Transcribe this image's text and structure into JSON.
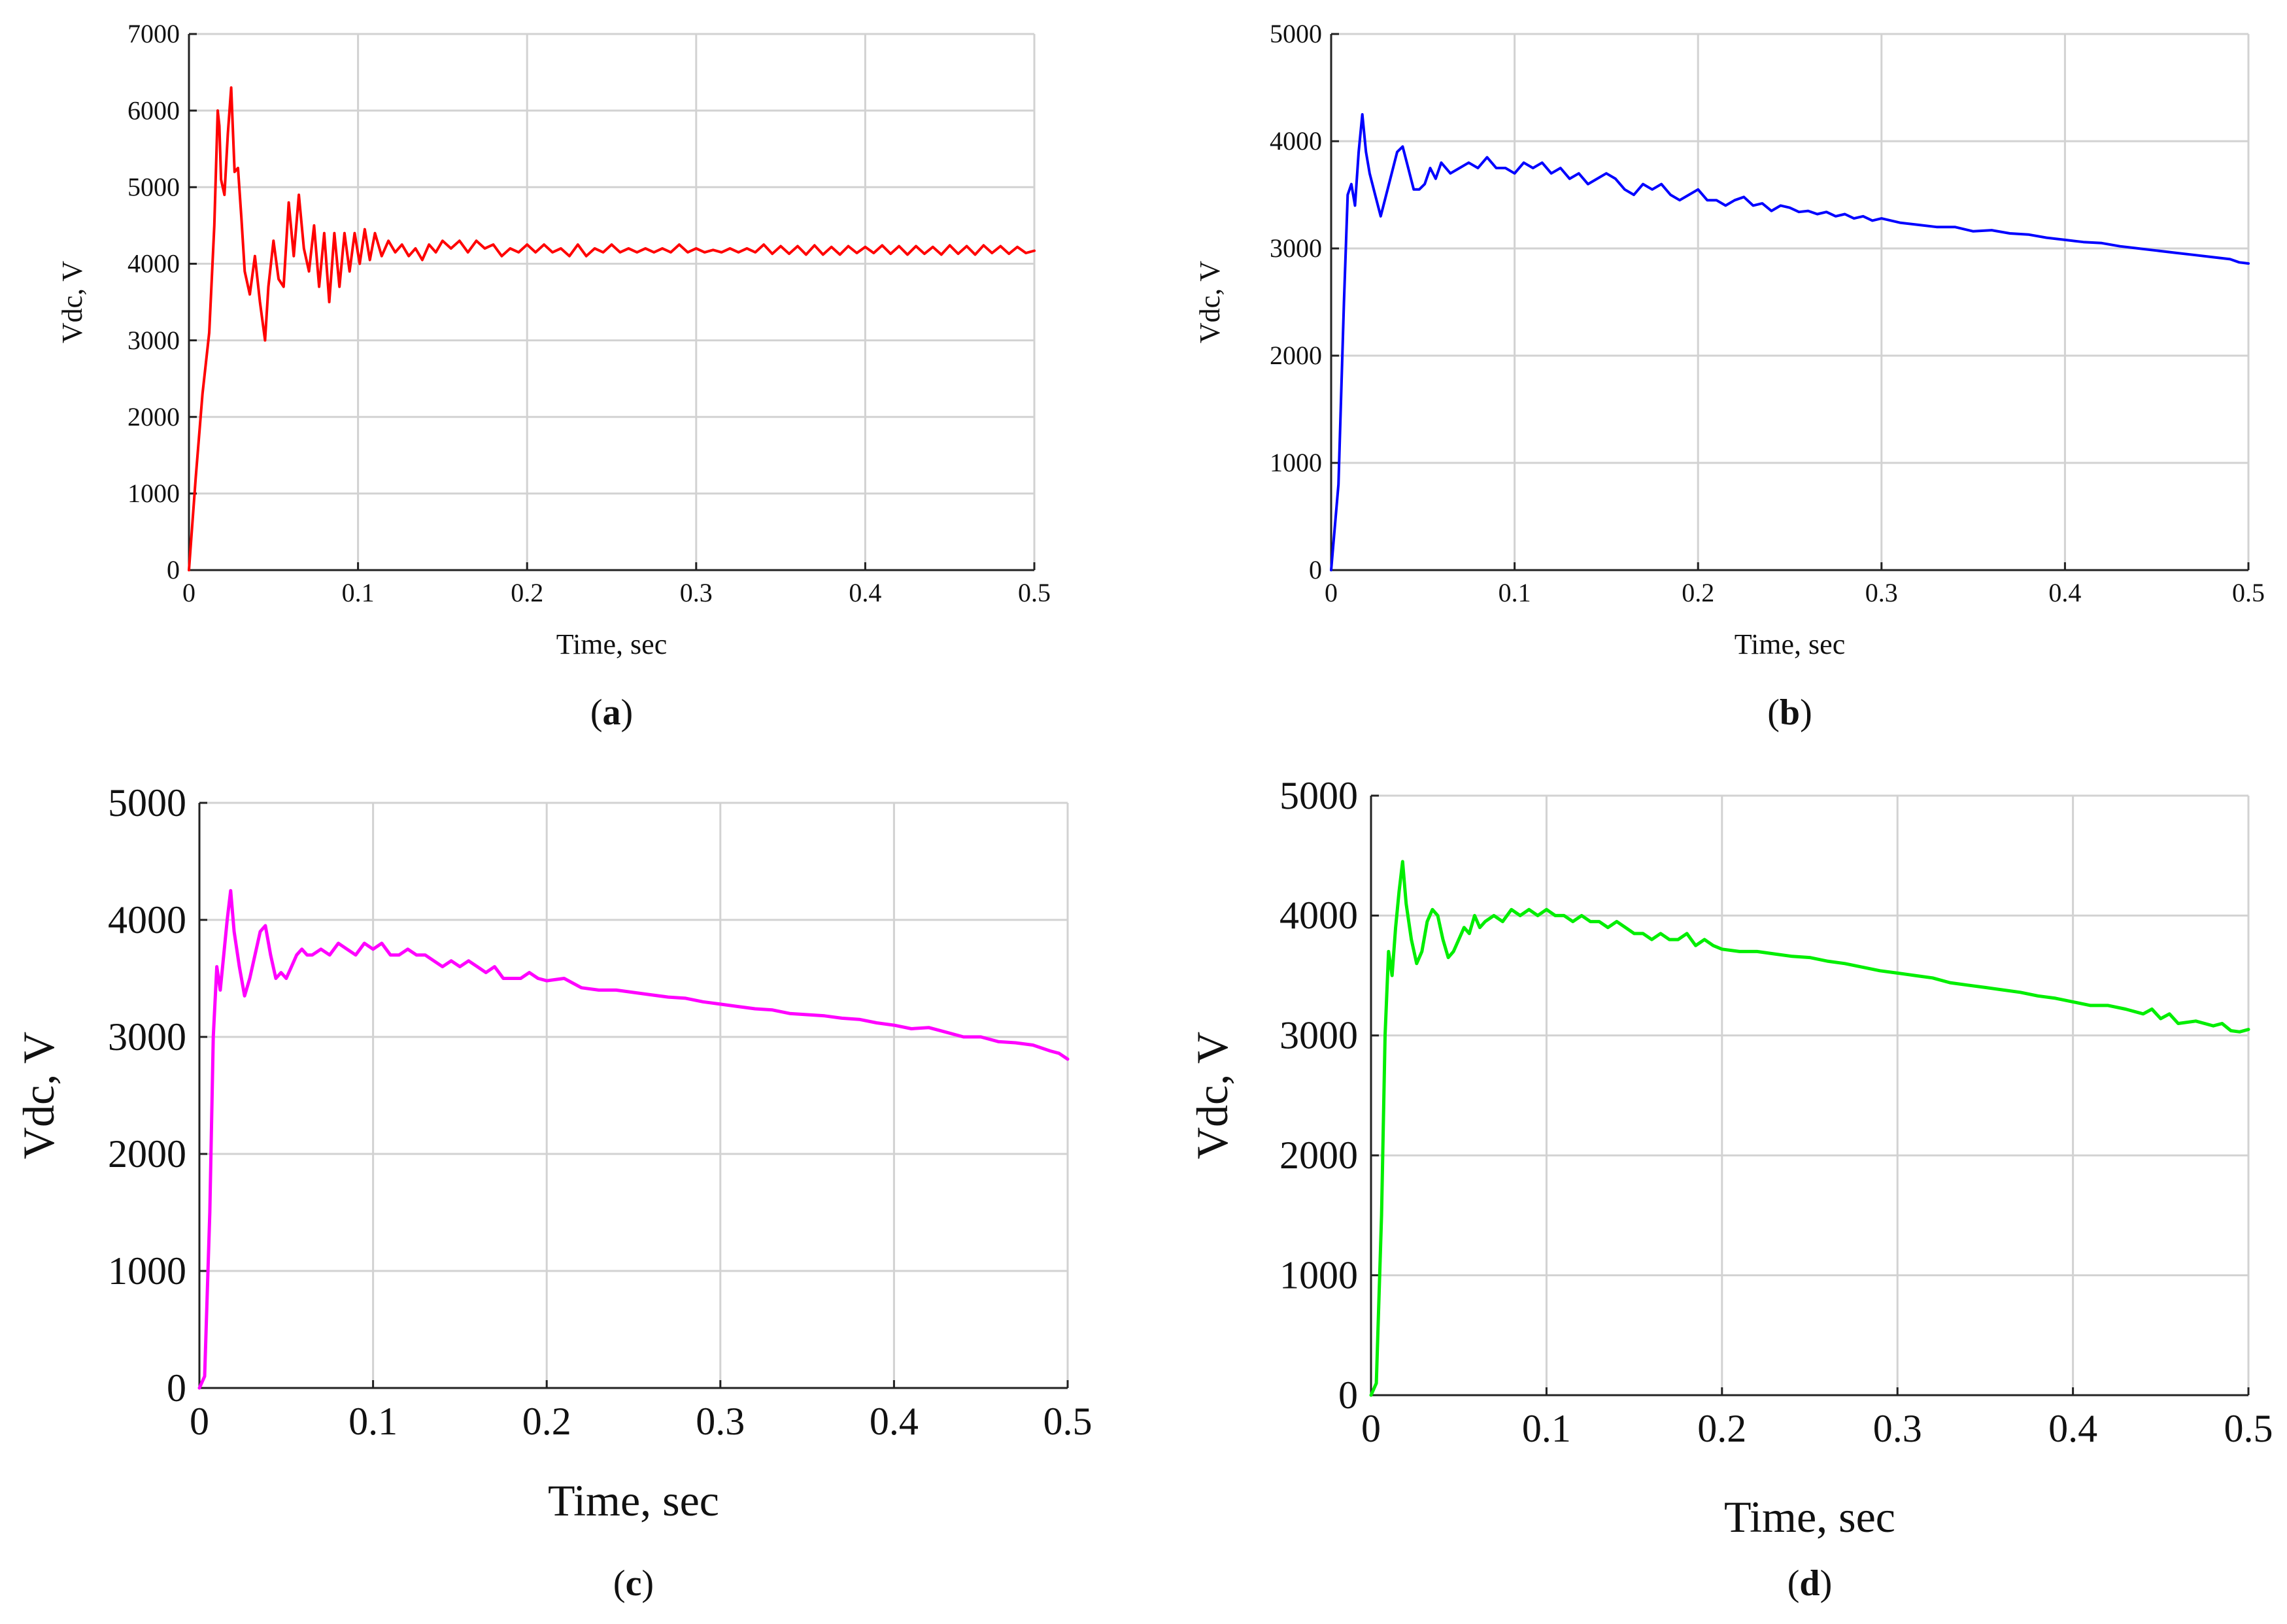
{
  "chart_data": [
    {
      "id": "a",
      "type": "line",
      "panel_label": "a",
      "xlabel": "Time, sec",
      "ylabel": "Vdc, V",
      "xlim": [
        0,
        0.5
      ],
      "ylim": [
        0,
        7000
      ],
      "xticks": [
        0,
        0.1,
        0.2,
        0.3,
        0.4,
        0.5
      ],
      "xtick_labels": [
        "0",
        "0.1",
        "0.2",
        "0.3",
        "0.4",
        "0.5"
      ],
      "yticks": [
        0,
        1000,
        2000,
        3000,
        4000,
        5000,
        6000,
        7000
      ],
      "ytick_labels": [
        "0",
        "1000",
        "2000",
        "3000",
        "4000",
        "5000",
        "6000",
        "7000"
      ],
      "grid": true,
      "series": [
        {
          "name": "Vdc",
          "color": "#ff0000",
          "x": [
            0,
            0.004,
            0.008,
            0.012,
            0.015,
            0.017,
            0.018,
            0.019,
            0.021,
            0.023,
            0.025,
            0.027,
            0.029,
            0.031,
            0.033,
            0.036,
            0.039,
            0.042,
            0.045,
            0.047,
            0.05,
            0.053,
            0.056,
            0.059,
            0.062,
            0.065,
            0.068,
            0.071,
            0.074,
            0.077,
            0.08,
            0.083,
            0.086,
            0.089,
            0.092,
            0.095,
            0.098,
            0.101,
            0.104,
            0.107,
            0.11,
            0.114,
            0.118,
            0.122,
            0.126,
            0.13,
            0.134,
            0.138,
            0.142,
            0.146,
            0.15,
            0.155,
            0.16,
            0.165,
            0.17,
            0.175,
            0.18,
            0.185,
            0.19,
            0.195,
            0.2,
            0.205,
            0.21,
            0.215,
            0.22,
            0.225,
            0.23,
            0.235,
            0.24,
            0.245,
            0.25,
            0.255,
            0.26,
            0.265,
            0.27,
            0.275,
            0.28,
            0.285,
            0.29,
            0.295,
            0.3,
            0.305,
            0.31,
            0.315,
            0.32,
            0.325,
            0.33,
            0.335,
            0.34,
            0.345,
            0.35,
            0.355,
            0.36,
            0.365,
            0.37,
            0.375,
            0.38,
            0.385,
            0.39,
            0.395,
            0.4,
            0.405,
            0.41,
            0.415,
            0.42,
            0.425,
            0.43,
            0.435,
            0.44,
            0.445,
            0.45,
            0.455,
            0.46,
            0.465,
            0.47,
            0.475,
            0.48,
            0.485,
            0.49,
            0.495,
            0.5
          ],
          "y": [
            0,
            1200,
            2300,
            3100,
            4500,
            6000,
            5800,
            5100,
            4900,
            5700,
            6300,
            5200,
            5250,
            4600,
            3900,
            3600,
            4100,
            3500,
            3000,
            3700,
            4300,
            3800,
            3700,
            4800,
            4100,
            4900,
            4200,
            3900,
            4500,
            3700,
            4400,
            3500,
            4400,
            3700,
            4400,
            3900,
            4400,
            4000,
            4450,
            4050,
            4400,
            4100,
            4300,
            4150,
            4250,
            4100,
            4200,
            4050,
            4250,
            4150,
            4300,
            4200,
            4300,
            4150,
            4300,
            4200,
            4250,
            4100,
            4200,
            4150,
            4250,
            4150,
            4250,
            4150,
            4200,
            4100,
            4250,
            4100,
            4200,
            4150,
            4250,
            4150,
            4200,
            4150,
            4200,
            4150,
            4200,
            4150,
            4250,
            4150,
            4200,
            4150,
            4180,
            4150,
            4200,
            4150,
            4200,
            4150,
            4250,
            4130,
            4230,
            4130,
            4230,
            4120,
            4240,
            4120,
            4220,
            4120,
            4230,
            4140,
            4220,
            4140,
            4240,
            4130,
            4230,
            4120,
            4230,
            4130,
            4220,
            4120,
            4240,
            4130,
            4230,
            4120,
            4240,
            4140,
            4230,
            4130,
            4220,
            4140,
            4170
          ]
        }
      ]
    },
    {
      "id": "b",
      "type": "line",
      "panel_label": "b",
      "xlabel": "Time, sec",
      "ylabel": "Vdc, V",
      "xlim": [
        0,
        0.5
      ],
      "ylim": [
        0,
        5000
      ],
      "xticks": [
        0,
        0.1,
        0.2,
        0.3,
        0.4,
        0.5
      ],
      "xtick_labels": [
        "0",
        "0.1",
        "0.2",
        "0.3",
        "0.4",
        "0.5"
      ],
      "yticks": [
        0,
        1000,
        2000,
        3000,
        4000,
        5000
      ],
      "ytick_labels": [
        "0",
        "1000",
        "2000",
        "3000",
        "4000",
        "5000"
      ],
      "grid": true,
      "series": [
        {
          "name": "Vdc",
          "color": "#0000ff",
          "x": [
            0,
            0.004,
            0.007,
            0.009,
            0.011,
            0.013,
            0.015,
            0.017,
            0.019,
            0.021,
            0.024,
            0.027,
            0.03,
            0.033,
            0.036,
            0.039,
            0.042,
            0.045,
            0.048,
            0.051,
            0.054,
            0.057,
            0.06,
            0.065,
            0.07,
            0.075,
            0.08,
            0.085,
            0.09,
            0.095,
            0.1,
            0.105,
            0.11,
            0.115,
            0.12,
            0.125,
            0.13,
            0.135,
            0.14,
            0.145,
            0.15,
            0.155,
            0.16,
            0.165,
            0.17,
            0.175,
            0.18,
            0.185,
            0.19,
            0.195,
            0.2,
            0.205,
            0.21,
            0.215,
            0.22,
            0.225,
            0.23,
            0.235,
            0.24,
            0.245,
            0.25,
            0.255,
            0.26,
            0.265,
            0.27,
            0.275,
            0.28,
            0.285,
            0.29,
            0.295,
            0.3,
            0.31,
            0.32,
            0.33,
            0.34,
            0.35,
            0.36,
            0.37,
            0.38,
            0.39,
            0.4,
            0.41,
            0.42,
            0.43,
            0.44,
            0.45,
            0.46,
            0.47,
            0.48,
            0.49,
            0.495,
            0.5
          ],
          "y": [
            0,
            800,
            2500,
            3500,
            3600,
            3400,
            3900,
            4250,
            3900,
            3700,
            3500,
            3300,
            3500,
            3700,
            3900,
            3950,
            3750,
            3550,
            3550,
            3600,
            3750,
            3650,
            3800,
            3700,
            3750,
            3800,
            3750,
            3850,
            3750,
            3750,
            3700,
            3800,
            3750,
            3800,
            3700,
            3750,
            3650,
            3700,
            3600,
            3650,
            3700,
            3650,
            3550,
            3500,
            3600,
            3550,
            3600,
            3500,
            3450,
            3500,
            3550,
            3450,
            3450,
            3400,
            3450,
            3480,
            3400,
            3420,
            3350,
            3400,
            3380,
            3340,
            3350,
            3320,
            3340,
            3300,
            3320,
            3280,
            3300,
            3260,
            3280,
            3240,
            3220,
            3200,
            3200,
            3160,
            3170,
            3140,
            3130,
            3100,
            3080,
            3060,
            3050,
            3020,
            3000,
            2980,
            2960,
            2940,
            2920,
            2900,
            2870,
            2860
          ]
        }
      ]
    },
    {
      "id": "c",
      "type": "line",
      "panel_label": "c",
      "xlabel": "Time, sec",
      "ylabel": "Vdc, V",
      "xlim": [
        0,
        0.5
      ],
      "ylim": [
        0,
        5000
      ],
      "xticks": [
        0,
        0.1,
        0.2,
        0.3,
        0.4,
        0.5
      ],
      "xtick_labels": [
        "0",
        "0.1",
        "0.2",
        "0.3",
        "0.4",
        "0.5"
      ],
      "yticks": [
        0,
        1000,
        2000,
        3000,
        4000,
        5000
      ],
      "ytick_labels": [
        "0",
        "1000",
        "2000",
        "3000",
        "4000",
        "5000"
      ],
      "grid": true,
      "series": [
        {
          "name": "Vdc",
          "color": "#ff00ff",
          "x": [
            0,
            0.003,
            0.006,
            0.008,
            0.01,
            0.012,
            0.014,
            0.016,
            0.018,
            0.02,
            0.023,
            0.026,
            0.029,
            0.032,
            0.035,
            0.038,
            0.041,
            0.044,
            0.047,
            0.05,
            0.053,
            0.056,
            0.059,
            0.062,
            0.065,
            0.07,
            0.075,
            0.08,
            0.085,
            0.09,
            0.095,
            0.1,
            0.105,
            0.11,
            0.115,
            0.12,
            0.125,
            0.13,
            0.135,
            0.14,
            0.145,
            0.15,
            0.155,
            0.16,
            0.165,
            0.17,
            0.175,
            0.18,
            0.185,
            0.19,
            0.195,
            0.2,
            0.21,
            0.22,
            0.23,
            0.24,
            0.25,
            0.26,
            0.27,
            0.28,
            0.29,
            0.3,
            0.31,
            0.32,
            0.33,
            0.34,
            0.35,
            0.36,
            0.37,
            0.38,
            0.39,
            0.4,
            0.41,
            0.42,
            0.43,
            0.44,
            0.45,
            0.46,
            0.47,
            0.48,
            0.49,
            0.495,
            0.5
          ],
          "y": [
            0,
            100,
            1500,
            3000,
            3600,
            3400,
            3700,
            4000,
            4250,
            3900,
            3600,
            3350,
            3500,
            3700,
            3900,
            3950,
            3700,
            3500,
            3550,
            3500,
            3600,
            3700,
            3750,
            3700,
            3700,
            3750,
            3700,
            3800,
            3750,
            3700,
            3800,
            3750,
            3800,
            3700,
            3700,
            3750,
            3700,
            3700,
            3650,
            3600,
            3650,
            3600,
            3650,
            3600,
            3550,
            3600,
            3500,
            3500,
            3500,
            3550,
            3500,
            3480,
            3500,
            3420,
            3400,
            3400,
            3380,
            3360,
            3340,
            3330,
            3300,
            3280,
            3260,
            3240,
            3230,
            3200,
            3190,
            3180,
            3160,
            3150,
            3120,
            3100,
            3070,
            3080,
            3040,
            3000,
            3000,
            2960,
            2950,
            2930,
            2880,
            2860,
            2810
          ]
        }
      ]
    },
    {
      "id": "d",
      "type": "line",
      "panel_label": "d",
      "xlabel": "Time, sec",
      "ylabel": "Vdc, V",
      "xlim": [
        0,
        0.5
      ],
      "ylim": [
        0,
        5000
      ],
      "xticks": [
        0,
        0.1,
        0.2,
        0.3,
        0.4,
        0.5
      ],
      "xtick_labels": [
        "0",
        "0.1",
        "0.2",
        "0.3",
        "0.4",
        "0.5"
      ],
      "yticks": [
        0,
        1000,
        2000,
        3000,
        4000,
        5000
      ],
      "ytick_labels": [
        "0",
        "1000",
        "2000",
        "3000",
        "4000",
        "5000"
      ],
      "grid": true,
      "series": [
        {
          "name": "Vdc",
          "color": "#00ee00",
          "x": [
            0,
            0.003,
            0.006,
            0.008,
            0.01,
            0.012,
            0.014,
            0.016,
            0.018,
            0.02,
            0.023,
            0.026,
            0.029,
            0.032,
            0.035,
            0.038,
            0.041,
            0.044,
            0.047,
            0.05,
            0.053,
            0.056,
            0.059,
            0.062,
            0.065,
            0.07,
            0.075,
            0.08,
            0.085,
            0.09,
            0.095,
            0.1,
            0.105,
            0.11,
            0.115,
            0.12,
            0.125,
            0.13,
            0.135,
            0.14,
            0.145,
            0.15,
            0.155,
            0.16,
            0.165,
            0.17,
            0.175,
            0.18,
            0.185,
            0.19,
            0.195,
            0.2,
            0.21,
            0.22,
            0.23,
            0.24,
            0.25,
            0.26,
            0.27,
            0.28,
            0.29,
            0.3,
            0.31,
            0.32,
            0.33,
            0.34,
            0.35,
            0.36,
            0.37,
            0.38,
            0.39,
            0.4,
            0.41,
            0.42,
            0.43,
            0.44,
            0.445,
            0.45,
            0.455,
            0.46,
            0.47,
            0.48,
            0.485,
            0.49,
            0.495,
            0.5
          ],
          "y": [
            0,
            100,
            1500,
            3000,
            3700,
            3500,
            3900,
            4200,
            4450,
            4100,
            3800,
            3600,
            3700,
            3950,
            4050,
            4000,
            3800,
            3650,
            3700,
            3800,
            3900,
            3850,
            4000,
            3900,
            3950,
            4000,
            3950,
            4050,
            4000,
            4050,
            4000,
            4050,
            4000,
            4000,
            3950,
            4000,
            3950,
            3950,
            3900,
            3950,
            3900,
            3850,
            3850,
            3800,
            3850,
            3800,
            3800,
            3850,
            3750,
            3800,
            3750,
            3720,
            3700,
            3700,
            3680,
            3660,
            3650,
            3620,
            3600,
            3570,
            3540,
            3520,
            3500,
            3480,
            3440,
            3420,
            3400,
            3380,
            3360,
            3330,
            3310,
            3280,
            3250,
            3250,
            3220,
            3180,
            3220,
            3140,
            3180,
            3100,
            3120,
            3080,
            3100,
            3040,
            3030,
            3050
          ]
        }
      ]
    }
  ]
}
